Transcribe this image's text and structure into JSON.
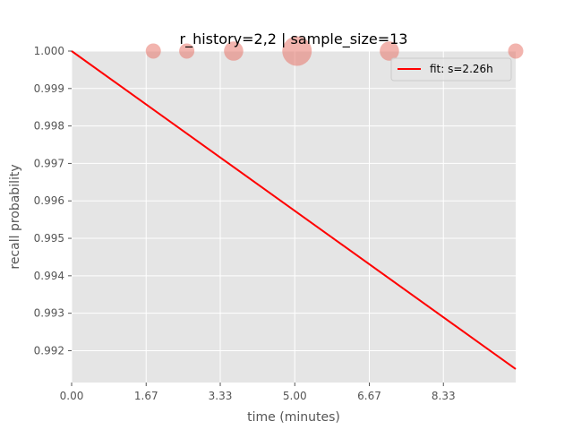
{
  "chart_data": {
    "type": "scatter",
    "title": "r_history=2,2 | sample_size=13",
    "xlabel": "time (minutes)",
    "ylabel": "recall probability",
    "xlim": [
      0,
      9.95
    ],
    "ylim": [
      0.99115,
      1.0
    ],
    "x_ticks": [
      "0.00",
      "1.67",
      "3.33",
      "5.00",
      "6.67",
      "8.33"
    ],
    "y_ticks": [
      "0.992",
      "0.993",
      "0.994",
      "0.995",
      "0.996",
      "0.997",
      "0.998",
      "0.999",
      "1.000"
    ],
    "grid": true,
    "legend_position": "top-right",
    "points": [
      {
        "x": 1.83,
        "y": 1.0,
        "size": 1
      },
      {
        "x": 2.58,
        "y": 1.0,
        "size": 1
      },
      {
        "x": 3.63,
        "y": 1.0,
        "size": 2
      },
      {
        "x": 5.05,
        "y": 1.0,
        "size": 6
      },
      {
        "x": 7.12,
        "y": 1.0,
        "size": 2
      },
      {
        "x": 9.95,
        "y": 1.0,
        "size": 1
      }
    ],
    "fit": {
      "label": "fit: s=2.26h",
      "x": [
        0,
        9.95
      ],
      "y": [
        1.0,
        0.99151
      ]
    },
    "colors": {
      "background": "#e5e5e5",
      "grid": "#ffffff",
      "points": "#e8776b",
      "fit_line": "#ff0000"
    }
  }
}
